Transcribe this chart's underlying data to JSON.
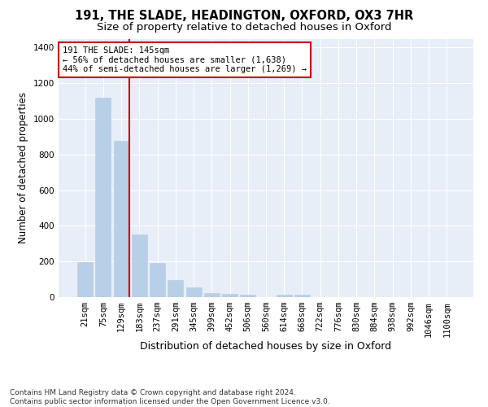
{
  "title1": "191, THE SLADE, HEADINGTON, OXFORD, OX3 7HR",
  "title2": "Size of property relative to detached houses in Oxford",
  "xlabel": "Distribution of detached houses by size in Oxford",
  "ylabel": "Number of detached properties",
  "categories": [
    "21sqm",
    "75sqm",
    "129sqm",
    "183sqm",
    "237sqm",
    "291sqm",
    "345sqm",
    "399sqm",
    "452sqm",
    "506sqm",
    "560sqm",
    "614sqm",
    "668sqm",
    "722sqm",
    "776sqm",
    "830sqm",
    "884sqm",
    "938sqm",
    "992sqm",
    "1046sqm",
    "1100sqm"
  ],
  "values": [
    197,
    1120,
    878,
    352,
    193,
    96,
    55,
    25,
    20,
    15,
    0,
    14,
    13,
    0,
    0,
    0,
    0,
    0,
    0,
    0,
    0
  ],
  "bar_color": "#b8cfe8",
  "bar_edge_color": "#b8cfe8",
  "vline_color": "#cc0000",
  "annotation_text": "191 THE SLADE: 145sqm\n← 56% of detached houses are smaller (1,638)\n44% of semi-detached houses are larger (1,269) →",
  "annotation_box_color": "#ffffff",
  "annotation_box_edge_color": "#cc0000",
  "ylim": [
    0,
    1450
  ],
  "yticks": [
    0,
    200,
    400,
    600,
    800,
    1000,
    1200,
    1400
  ],
  "plot_bg_color": "#e8eef8",
  "fig_bg_color": "#ffffff",
  "footer_text": "Contains HM Land Registry data © Crown copyright and database right 2024.\nContains public sector information licensed under the Open Government Licence v3.0.",
  "title1_fontsize": 10.5,
  "title2_fontsize": 9.5,
  "xlabel_fontsize": 9,
  "ylabel_fontsize": 8.5,
  "tick_fontsize": 7.5,
  "footer_fontsize": 6.5
}
